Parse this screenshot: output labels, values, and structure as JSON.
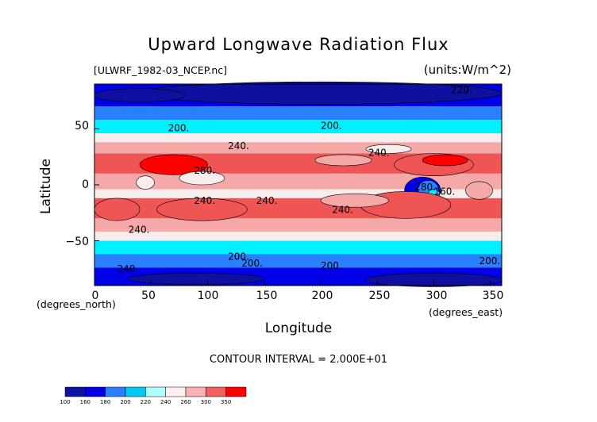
{
  "chart_data": {
    "type": "heatmap",
    "title": "Upward Longwave Radiation Flux",
    "file_label": "[ULWRF_1982-03_NCEP.nc]",
    "units_label": "(units:W/m^2)",
    "xlabel": "Longitude",
    "ylabel": "Latitude",
    "x_unit": "(degrees_north)",
    "x_unit_east": "(degrees_east)",
    "xlim": [
      0,
      360
    ],
    "ylim": [
      -90,
      90
    ],
    "x_ticks": [
      "0",
      "50",
      "100",
      "150",
      "200",
      "250",
      "300",
      "350"
    ],
    "y_ticks": [
      "50",
      "0",
      "−50"
    ],
    "contour_interval_text": "CONTOUR INTERVAL = 2.000E+01",
    "contour_labels": [
      "200.",
      "200.",
      "240.",
      "240.",
      "280.",
      "240.",
      "240.",
      "240.",
      "280.",
      "240.",
      "200.",
      "200.",
      "240.",
      "200.",
      "160.",
      "200.",
      "220."
    ],
    "colorbar": {
      "levels": [
        "100",
        "160",
        "180",
        "200",
        "220",
        "240",
        "260",
        "300",
        "350"
      ],
      "colors": [
        "#1010a0",
        "#0000e8",
        "#2a7fff",
        "#00c8f0",
        "#b0ffff",
        "#fff0f0",
        "#f8b0b0",
        "#f06060",
        "#ff0000"
      ]
    },
    "colors": {
      "band_colors": [
        "#1010a0",
        "#0000e8",
        "#2a7fff",
        "#00f0ff",
        "#f8ecec",
        "#f5a8a8",
        "#f05555",
        "#ff0000"
      ]
    }
  }
}
